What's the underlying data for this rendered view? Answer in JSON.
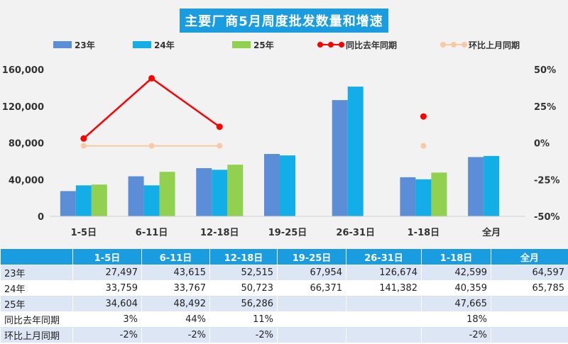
{
  "chart_data": {
    "type": "bar",
    "title": "主要厂商5月周度批发数量和增速",
    "categories": [
      "1-5日",
      "6-11日",
      "12-18日",
      "19-25日",
      "26-31日",
      "1-18日",
      "全月"
    ],
    "series": [
      {
        "name": "23年",
        "kind": "bar",
        "axis": "left",
        "color": "#5b8ed6",
        "values": [
          27497,
          43615,
          52515,
          67954,
          126674,
          42599,
          64597
        ]
      },
      {
        "name": "24年",
        "kind": "bar",
        "axis": "left",
        "color": "#13aee8",
        "values": [
          33759,
          33767,
          50723,
          66371,
          141382,
          40359,
          65785
        ]
      },
      {
        "name": "25年",
        "kind": "bar",
        "axis": "left",
        "color": "#92d050",
        "values": [
          34604,
          48492,
          56286,
          null,
          null,
          47665,
          null
        ]
      },
      {
        "name": "同比去年同期",
        "kind": "line",
        "axis": "right",
        "color": "#ff0000",
        "values": [
          3,
          44,
          11,
          null,
          null,
          18,
          null
        ]
      },
      {
        "name": "环比上月同期",
        "kind": "line",
        "axis": "right",
        "color": "#f8c9a4",
        "values": [
          -2,
          -2,
          -2,
          null,
          null,
          -2,
          null
        ]
      }
    ],
    "y_left": {
      "min": 0,
      "max": 160000,
      "ticks": [
        "0",
        "40,000",
        "80,000",
        "120,000",
        "160,000"
      ]
    },
    "y_right": {
      "min": -50,
      "max": 50,
      "ticks": [
        "-50%",
        "-25%",
        "0%",
        "25%",
        "50%"
      ]
    },
    "legend_position": "top",
    "grid": false
  },
  "table": {
    "columns": [
      "1-5日",
      "6-11日",
      "12-18日",
      "19-25日",
      "26-31日",
      "1-18日",
      "全月"
    ],
    "rows": [
      {
        "label": "23年",
        "cells": [
          "27,497",
          "43,615",
          "52,515",
          "67,954",
          "126,674",
          "42,599",
          "64,597"
        ]
      },
      {
        "label": "24年",
        "cells": [
          "33,759",
          "33,767",
          "50,723",
          "66,371",
          "141,382",
          "40,359",
          "65,785"
        ]
      },
      {
        "label": "25年",
        "cells": [
          "34,604",
          "48,492",
          "56,286",
          "",
          "",
          "47,665",
          ""
        ]
      },
      {
        "label": "同比去年同期",
        "cells": [
          "3%",
          "44%",
          "11%",
          "",
          "",
          "18%",
          ""
        ]
      },
      {
        "label": "环比上月同期",
        "cells": [
          "-2%",
          "-2%",
          "-2%",
          "",
          "",
          "-2%",
          ""
        ]
      }
    ]
  }
}
